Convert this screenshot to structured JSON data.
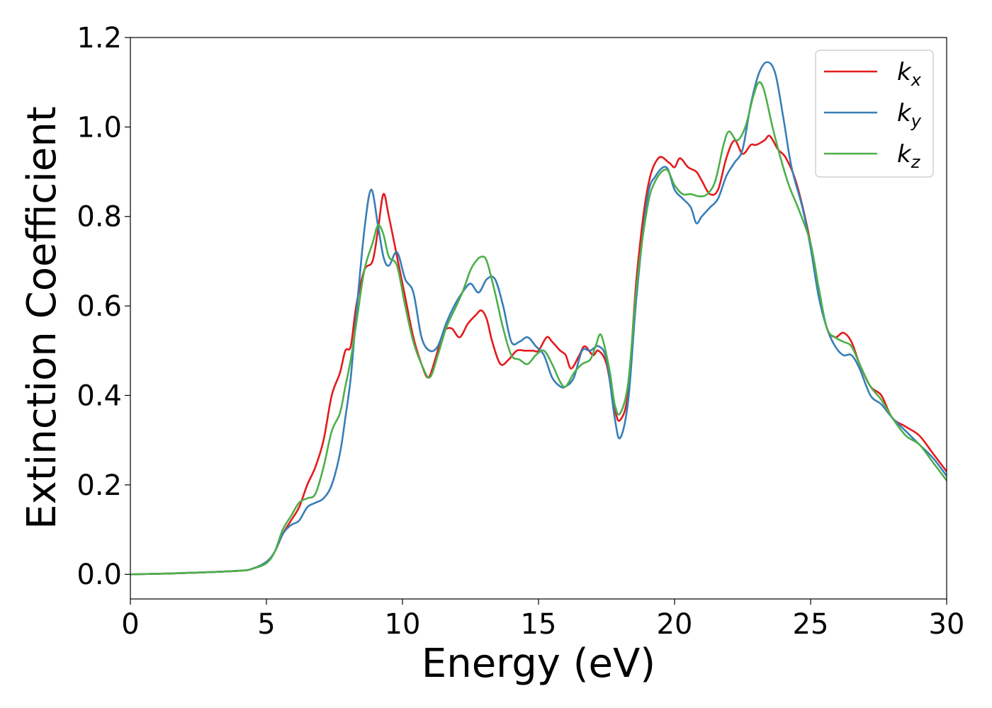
{
  "chart_data": {
    "type": "line",
    "title": "",
    "xlabel": "Energy (eV)",
    "ylabel": "Extinction Coefficient",
    "xlim": [
      0,
      30
    ],
    "ylim": [
      -0.055,
      1.2
    ],
    "xticks": [
      0,
      5,
      10,
      15,
      20,
      25,
      30
    ],
    "xtick_labels": [
      "0",
      "5",
      "10",
      "15",
      "20",
      "25",
      "30"
    ],
    "yticks": [
      0.0,
      0.2,
      0.4,
      0.6,
      0.8,
      1.0,
      1.2
    ],
    "ytick_labels": [
      "0.0",
      "0.2",
      "0.4",
      "0.6",
      "0.8",
      "1.0",
      "1.2"
    ],
    "grid": false,
    "legend_position": "top-right",
    "series": [
      {
        "name": "k_x",
        "label_base": "k",
        "label_sub": "x",
        "color": "#e41a1c",
        "x": [
          0,
          2,
          4,
          4.5,
          5,
          5.3,
          5.6,
          5.9,
          6.2,
          6.5,
          6.8,
          7.1,
          7.4,
          7.7,
          7.9,
          8.1,
          8.3,
          8.6,
          8.9,
          9.1,
          9.3,
          9.5,
          9.8,
          10.1,
          10.4,
          10.7,
          10.95,
          11.2,
          11.5,
          11.8,
          12.1,
          12.4,
          12.7,
          12.9,
          13.1,
          13.3,
          13.6,
          13.9,
          14.2,
          14.5,
          14.8,
          15.0,
          15.3,
          15.5,
          15.8,
          16.0,
          16.2,
          16.5,
          16.7,
          17.0,
          17.2,
          17.5,
          17.8,
          18.0,
          18.3,
          18.6,
          19.0,
          19.4,
          19.8,
          20.0,
          20.2,
          20.5,
          20.8,
          21.0,
          21.3,
          21.6,
          21.9,
          22.2,
          22.5,
          22.8,
          23.0,
          23.3,
          23.5,
          23.8,
          24.1,
          24.5,
          25.0,
          25.3,
          25.6,
          25.9,
          26.2,
          26.5,
          26.8,
          27.2,
          27.6,
          28.0,
          28.5,
          29.0,
          29.5,
          30.0
        ],
        "y": [
          0.0,
          0.003,
          0.008,
          0.013,
          0.028,
          0.05,
          0.09,
          0.12,
          0.15,
          0.2,
          0.24,
          0.3,
          0.4,
          0.45,
          0.5,
          0.51,
          0.6,
          0.68,
          0.7,
          0.77,
          0.85,
          0.8,
          0.71,
          0.62,
          0.53,
          0.47,
          0.44,
          0.48,
          0.54,
          0.55,
          0.53,
          0.56,
          0.58,
          0.59,
          0.57,
          0.52,
          0.47,
          0.48,
          0.5,
          0.5,
          0.5,
          0.5,
          0.53,
          0.52,
          0.5,
          0.49,
          0.46,
          0.49,
          0.51,
          0.49,
          0.5,
          0.47,
          0.37,
          0.345,
          0.41,
          0.66,
          0.86,
          0.93,
          0.92,
          0.91,
          0.93,
          0.91,
          0.9,
          0.88,
          0.85,
          0.86,
          0.93,
          0.97,
          0.94,
          0.96,
          0.96,
          0.97,
          0.98,
          0.95,
          0.93,
          0.87,
          0.74,
          0.63,
          0.55,
          0.53,
          0.54,
          0.52,
          0.47,
          0.42,
          0.4,
          0.35,
          0.33,
          0.31,
          0.27,
          0.23
        ]
      },
      {
        "name": "k_y",
        "label_base": "k",
        "label_sub": "y",
        "color": "#377eb8",
        "x": [
          0,
          2,
          4,
          4.5,
          5,
          5.3,
          5.6,
          5.9,
          6.2,
          6.5,
          6.8,
          7.1,
          7.4,
          7.7,
          7.9,
          8.1,
          8.3,
          8.6,
          8.85,
          9.1,
          9.3,
          9.5,
          9.8,
          10.1,
          10.4,
          10.7,
          11.0,
          11.3,
          11.6,
          11.9,
          12.2,
          12.5,
          12.8,
          13.1,
          13.4,
          13.7,
          14.0,
          14.3,
          14.6,
          14.9,
          15.2,
          15.5,
          15.8,
          16.0,
          16.3,
          16.6,
          16.9,
          17.2,
          17.5,
          17.8,
          18.0,
          18.3,
          18.6,
          19.0,
          19.3,
          19.7,
          20.0,
          20.3,
          20.6,
          20.8,
          21.0,
          21.3,
          21.6,
          21.9,
          22.2,
          22.5,
          22.8,
          23.1,
          23.4,
          23.7,
          24.0,
          24.3,
          24.7,
          25.0,
          25.3,
          25.6,
          25.9,
          26.2,
          26.5,
          26.8,
          27.2,
          27.6,
          28.0,
          28.5,
          29.0,
          29.5,
          30.0
        ],
        "y": [
          0.0,
          0.003,
          0.008,
          0.013,
          0.028,
          0.05,
          0.09,
          0.11,
          0.12,
          0.15,
          0.16,
          0.17,
          0.2,
          0.27,
          0.35,
          0.44,
          0.58,
          0.77,
          0.86,
          0.78,
          0.71,
          0.69,
          0.72,
          0.66,
          0.63,
          0.53,
          0.5,
          0.51,
          0.56,
          0.6,
          0.63,
          0.65,
          0.63,
          0.66,
          0.66,
          0.6,
          0.52,
          0.52,
          0.53,
          0.51,
          0.49,
          0.44,
          0.42,
          0.42,
          0.44,
          0.5,
          0.5,
          0.51,
          0.48,
          0.35,
          0.305,
          0.39,
          0.62,
          0.84,
          0.89,
          0.91,
          0.86,
          0.84,
          0.82,
          0.785,
          0.8,
          0.82,
          0.84,
          0.89,
          0.92,
          0.95,
          1.05,
          1.12,
          1.145,
          1.12,
          1.02,
          0.91,
          0.82,
          0.73,
          0.62,
          0.55,
          0.51,
          0.49,
          0.49,
          0.46,
          0.4,
          0.38,
          0.35,
          0.32,
          0.29,
          0.26,
          0.22
        ]
      },
      {
        "name": "k_z",
        "label_base": "k",
        "label_sub": "z",
        "color": "#4daf4a",
        "x": [
          0,
          2,
          4,
          4.5,
          5,
          5.3,
          5.6,
          5.9,
          6.2,
          6.5,
          6.8,
          7.1,
          7.4,
          7.7,
          7.9,
          8.1,
          8.3,
          8.6,
          8.9,
          9.1,
          9.3,
          9.5,
          9.8,
          10.1,
          10.4,
          10.7,
          11.0,
          11.3,
          11.6,
          11.9,
          12.2,
          12.5,
          12.7,
          12.9,
          13.1,
          13.4,
          13.7,
          14.0,
          14.3,
          14.6,
          14.9,
          15.2,
          15.5,
          15.8,
          16.0,
          16.3,
          16.6,
          16.9,
          17.1,
          17.3,
          17.6,
          17.8,
          18.0,
          18.3,
          18.6,
          19.0,
          19.3,
          19.7,
          20.0,
          20.3,
          20.6,
          20.9,
          21.2,
          21.5,
          21.8,
          22.0,
          22.3,
          22.6,
          22.9,
          23.1,
          23.3,
          23.6,
          23.9,
          24.2,
          24.6,
          25.0,
          25.3,
          25.6,
          25.9,
          26.2,
          26.5,
          26.8,
          27.2,
          27.6,
          28.0,
          28.5,
          29.0,
          29.5,
          30.0
        ],
        "y": [
          0.0,
          0.003,
          0.008,
          0.013,
          0.025,
          0.05,
          0.1,
          0.13,
          0.16,
          0.17,
          0.18,
          0.24,
          0.32,
          0.36,
          0.42,
          0.48,
          0.56,
          0.68,
          0.74,
          0.78,
          0.76,
          0.71,
          0.69,
          0.6,
          0.52,
          0.47,
          0.44,
          0.49,
          0.55,
          0.59,
          0.63,
          0.68,
          0.7,
          0.71,
          0.7,
          0.63,
          0.55,
          0.49,
          0.48,
          0.47,
          0.49,
          0.5,
          0.47,
          0.43,
          0.42,
          0.45,
          0.47,
          0.48,
          0.51,
          0.535,
          0.46,
          0.38,
          0.36,
          0.43,
          0.64,
          0.82,
          0.88,
          0.905,
          0.87,
          0.85,
          0.85,
          0.845,
          0.85,
          0.88,
          0.96,
          0.99,
          0.97,
          1.0,
          1.07,
          1.1,
          1.08,
          1.0,
          0.93,
          0.87,
          0.81,
          0.74,
          0.64,
          0.55,
          0.53,
          0.52,
          0.51,
          0.47,
          0.42,
          0.39,
          0.35,
          0.31,
          0.29,
          0.25,
          0.21
        ]
      }
    ]
  }
}
